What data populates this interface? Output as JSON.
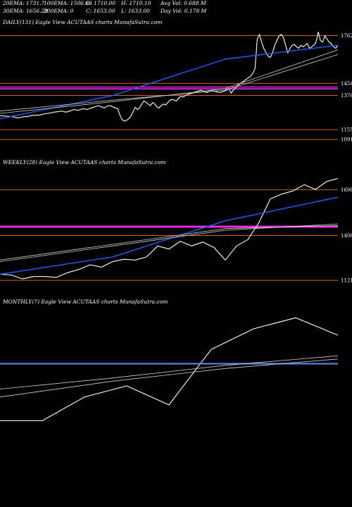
{
  "header": {
    "row1": [
      "20EMA: 1731.7",
      "100EMA: 1506.66",
      "O: 1710.00",
      "H: 1710.10",
      "Avg Vol: 0.688 M"
    ],
    "row2": [
      "30EMA: 1656.28",
      "200EMA: 0",
      "C: 1653.00",
      "L: 1633.00",
      "Day Vol: 0.178 M"
    ]
  },
  "colors": {
    "background": "#000000",
    "price": "#ffffff",
    "ema_fast": "#1f5fff",
    "ema_slow": "#d0d0d0",
    "support": "#c8641e",
    "magenta": "#ff2bff",
    "monthly_blue": "#5a8cff"
  },
  "chart_data": [
    {
      "type": "line",
      "title": "DAILY(131) Eagle   View  ACUTAAS charts MunafaSutra.com",
      "ylim": [
        1060,
        1810
      ],
      "y_ticks": [
        1762,
        1454,
        1376,
        1155,
        1091
      ],
      "support_levels": [
        1762,
        1454,
        1376,
        1155,
        1091
      ],
      "magenta_levels": [
        1430,
        1418
      ],
      "series": [
        {
          "role": "price",
          "values": [
            1245,
            1244,
            1243,
            1242,
            1241,
            1240,
            1238,
            1235,
            1230,
            1233,
            1235,
            1240,
            1238,
            1242,
            1245,
            1248,
            1246,
            1250,
            1248,
            1252,
            1255,
            1258,
            1260,
            1262,
            1265,
            1268,
            1270,
            1272,
            1275,
            1272,
            1268,
            1270,
            1275,
            1280,
            1285,
            1282,
            1280,
            1285,
            1290,
            1288,
            1285,
            1290,
            1295,
            1300,
            1305,
            1310,
            1305,
            1300,
            1295,
            1305,
            1310,
            1308,
            1300,
            1295,
            1290,
            1250,
            1220,
            1210,
            1215,
            1225,
            1240,
            1270,
            1300,
            1285,
            1295,
            1320,
            1340,
            1330,
            1320,
            1310,
            1330,
            1320,
            1300,
            1295,
            1310,
            1320,
            1315,
            1330,
            1345,
            1350,
            1345,
            1340,
            1360,
            1370,
            1365,
            1375,
            1380,
            1385,
            1390,
            1395,
            1400,
            1405,
            1410,
            1405,
            1400,
            1395,
            1405,
            1410,
            1405,
            1400,
            1398,
            1395,
            1400,
            1405,
            1410,
            1420,
            1390,
            1410,
            1425,
            1440,
            1450,
            1460,
            1470,
            1480,
            1490,
            1500,
            1520,
            1550,
            1740,
            1770,
            1720,
            1680,
            1650,
            1630,
            1620,
            1650,
            1700,
            1730,
            1760,
            1770,
            1750,
            1700,
            1650,
            1680,
            1700,
            1705,
            1690,
            1680,
            1700,
            1690,
            1700,
            1710,
            1680,
            1690,
            1700,
            1720,
            1785,
            1730,
            1720,
            1760,
            1740,
            1720,
            1710,
            1690,
            1680,
            1700
          ]
        },
        {
          "role": "ema_fast",
          "values": [
            1225,
            1375,
            1610,
            1700
          ]
        },
        {
          "role": "ema_slow",
          "values": [
            1260,
            1335,
            1420,
            1670
          ]
        },
        {
          "role": "ema_slow2",
          "values": [
            1275,
            1345,
            1410,
            1640
          ]
        }
      ]
    },
    {
      "type": "line",
      "title": "WEEKLY(28) Eagle   View  ACUTAAS charts MunafaSutra.com",
      "ylim": [
        1090,
        1830
      ],
      "y_ticks": [
        1698,
        1406,
        1121
      ],
      "support_levels": [
        1698,
        1406,
        1121
      ],
      "magenta_levels": [
        1466,
        1460
      ],
      "series": [
        {
          "role": "price",
          "values": [
            1160,
            1155,
            1130,
            1145,
            1145,
            1140,
            1170,
            1190,
            1220,
            1205,
            1240,
            1255,
            1250,
            1270,
            1340,
            1320,
            1370,
            1340,
            1365,
            1330,
            1250,
            1340,
            1380,
            1490,
            1640,
            1670,
            1690,
            1730,
            1700,
            1750,
            1770
          ]
        },
        {
          "role": "ema_fast",
          "values": [
            1160,
            1270,
            1500,
            1650
          ]
        },
        {
          "role": "ema_slow",
          "values": [
            1240,
            1340,
            1440,
            1480
          ]
        },
        {
          "role": "ema_slow2",
          "values": [
            1250,
            1350,
            1450,
            1470
          ]
        }
      ]
    },
    {
      "type": "line",
      "title": "MONTHLY(7) Eagle   View  ACUTAAS charts MunafaSutra.com",
      "ylim": [
        1100,
        1900
      ],
      "y_ticks": [],
      "series": [
        {
          "role": "price",
          "values": [
            1200,
            1200,
            1350,
            1420,
            1300,
            1650,
            1780,
            1850,
            1740
          ]
        },
        {
          "role": "ema_fast",
          "values": [
            1560,
            1560,
            1560,
            1560,
            1560
          ]
        },
        {
          "role": "ema_slow",
          "values": [
            1400,
            1470,
            1550,
            1610
          ]
        },
        {
          "role": "ema_slow2",
          "values": [
            1350,
            1450,
            1530,
            1590
          ]
        }
      ]
    }
  ]
}
